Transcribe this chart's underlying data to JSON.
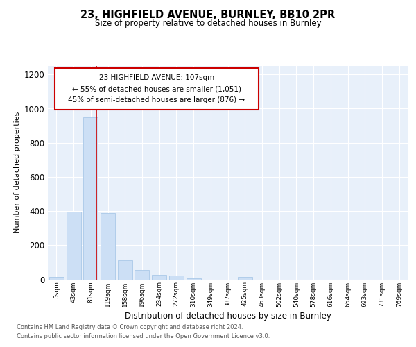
{
  "title1": "23, HIGHFIELD AVENUE, BURNLEY, BB10 2PR",
  "title2": "Size of property relative to detached houses in Burnley",
  "xlabel": "Distribution of detached houses by size in Burnley",
  "ylabel": "Number of detached properties",
  "bar_color": "#ccdff5",
  "bar_edge_color": "#aac8e8",
  "categories": [
    "5sqm",
    "43sqm",
    "81sqm",
    "119sqm",
    "158sqm",
    "196sqm",
    "234sqm",
    "272sqm",
    "310sqm",
    "349sqm",
    "387sqm",
    "425sqm",
    "463sqm",
    "502sqm",
    "540sqm",
    "578sqm",
    "616sqm",
    "654sqm",
    "693sqm",
    "731sqm",
    "769sqm"
  ],
  "values": [
    15,
    395,
    950,
    390,
    110,
    55,
    25,
    22,
    5,
    0,
    0,
    13,
    0,
    0,
    0,
    0,
    0,
    0,
    0,
    0,
    0
  ],
  "ylim": [
    0,
    1250
  ],
  "yticks": [
    0,
    200,
    400,
    600,
    800,
    1000,
    1200
  ],
  "red_line_x": 2.35,
  "annotation_text": "23 HIGHFIELD AVENUE: 107sqm\n← 55% of detached houses are smaller (1,051)\n45% of semi-detached houses are larger (876) →",
  "annotation_box_color": "#ffffff",
  "annotation_box_edge": "#cc0000",
  "red_line_color": "#cc0000",
  "footer1": "Contains HM Land Registry data © Crown copyright and database right 2024.",
  "footer2": "Contains public sector information licensed under the Open Government Licence v3.0.",
  "background_color": "#ffffff",
  "plot_background": "#e8f0fa",
  "grid_color": "#ffffff"
}
